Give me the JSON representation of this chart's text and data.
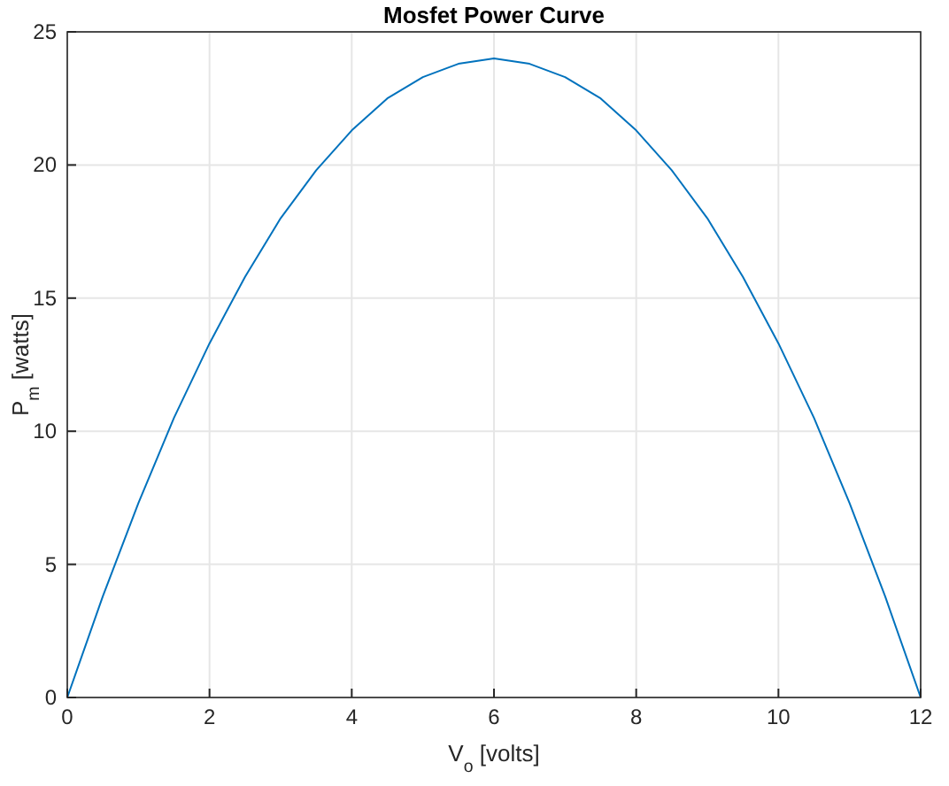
{
  "chart_data": {
    "type": "line",
    "title": "Mosfet Power Curve",
    "xlabel": "V$_{o}$ [volts]",
    "ylabel": "P$_{m}$ [watts]",
    "x": [
      0,
      0.5,
      1,
      1.5,
      2,
      2.5,
      3,
      3.5,
      4,
      4.5,
      5,
      5.5,
      6,
      6.5,
      7,
      7.5,
      8,
      8.5,
      9,
      9.5,
      10,
      10.5,
      11,
      11.5,
      12
    ],
    "series": [
      {
        "color": "#0072bd",
        "values": [
          0,
          3.8,
          7.3,
          10.5,
          13.3,
          15.8,
          18,
          19.8,
          21.3,
          22.5,
          23.3,
          23.8,
          24,
          23.8,
          23.3,
          22.5,
          21.3,
          19.8,
          18,
          15.8,
          13.3,
          10.5,
          7.3,
          3.8,
          0
        ]
      }
    ],
    "xlim": [
      0,
      12
    ],
    "xticks": [
      0,
      2,
      4,
      6,
      8,
      10,
      12
    ],
    "ylim": [
      0,
      25
    ],
    "yticks": [
      0,
      5,
      10,
      15,
      20,
      25
    ],
    "grid": true,
    "marker": "none",
    "line_style": "solid"
  }
}
